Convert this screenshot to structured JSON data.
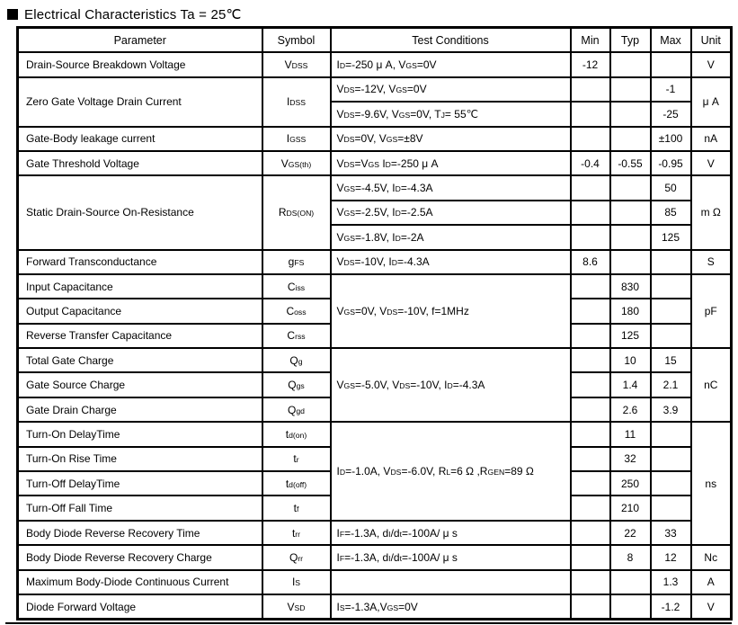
{
  "page": {
    "title": "Electrical Characteristics Ta = 25℃"
  },
  "colors": {
    "text": "#000000",
    "border": "#000000",
    "background": "#ffffff"
  },
  "table": {
    "headers": [
      "Parameter",
      "Symbol",
      "Test Conditions",
      "Min",
      "Typ",
      "Max",
      "Unit"
    ],
    "rows": [
      {
        "parameter": "Drain-Source Breakdown Voltage",
        "symbol": "V~DSS~",
        "condition": "I~D~=-250 μ A, V~GS~=0V",
        "min": "-12",
        "typ": "",
        "max": "",
        "unit": "V"
      },
      {
        "parameter": "Zero Gate Voltage Drain Current",
        "symbol": "I~DSS~",
        "condition": "V~DS~=-12V, V~GS~=0V",
        "min": "",
        "typ": "",
        "max": "-1",
        "unit": "μ A"
      },
      {
        "condition": "V~DS~=-9.6V, V~GS~=0V, T~J~= 55℃",
        "min": "",
        "typ": "",
        "max": "-25"
      },
      {
        "parameter": "Gate-Body leakage current",
        "symbol": "I~GSS~",
        "condition": "V~DS~=0V, V~GS~=±8V",
        "min": "",
        "typ": "",
        "max": "±100",
        "unit": "nA"
      },
      {
        "parameter": "Gate Threshold Voltage",
        "symbol": "V~GS(th)~",
        "condition": "V~DS~=V~GS~ I~D~=-250 μ A",
        "min": "-0.4",
        "typ": "-0.55",
        "max": "-0.95",
        "unit": "V"
      },
      {
        "parameter": "Static Drain-Source On-Resistance",
        "symbol": "R~DS(ON)~",
        "condition": "V~GS~=-4.5V, I~D~=-4.3A",
        "min": "",
        "typ": "",
        "max": "50",
        "unit": "m Ω"
      },
      {
        "condition": "V~GS~=-2.5V, I~D~=-2.5A",
        "min": "",
        "typ": "",
        "max": "85"
      },
      {
        "condition": "V~GS~=-1.8V, I~D~=-2A",
        "min": "",
        "typ": "",
        "max": "125"
      },
      {
        "parameter": "Forward Transconductance",
        "symbol": "g~FS~",
        "condition": "V~DS~=-10V, I~D~=-4.3A",
        "min": "8.6",
        "typ": "",
        "max": "",
        "unit": "S"
      },
      {
        "parameter": "Input Capacitance",
        "symbol": "C~iss~",
        "condition": "V~GS~=0V, V~DS~=-10V, f=1MHz",
        "min": "",
        "typ": "830",
        "max": "",
        "unit": "pF"
      },
      {
        "parameter": "Output Capacitance",
        "symbol": "C~oss~",
        "min": "",
        "typ": "180",
        "max": ""
      },
      {
        "parameter": "Reverse Transfer Capacitance",
        "symbol": "C~rss~",
        "min": "",
        "typ": "125",
        "max": ""
      },
      {
        "parameter": "Total Gate Charge",
        "symbol": "Q~g~",
        "condition": "V~GS~=-5.0V, V~DS~=-10V, I~D~=-4.3A",
        "min": "",
        "typ": "10",
        "max": "15",
        "unit": "nC"
      },
      {
        "parameter": "Gate Source Charge",
        "symbol": "Q~gs~",
        "min": "",
        "typ": "1.4",
        "max": "2.1"
      },
      {
        "parameter": "Gate Drain Charge",
        "symbol": "Q~gd~",
        "min": "",
        "typ": "2.6",
        "max": "3.9"
      },
      {
        "parameter": "Turn-On DelayTime",
        "symbol": "t~d(on)~",
        "condition": "I~D~=-1.0A, V~DS~=-6.0V, R~L~=6 Ω ,R~GEN~=89 Ω",
        "min": "",
        "typ": "11",
        "max": "",
        "unit": "ns"
      },
      {
        "parameter": "Turn-On Rise Time",
        "symbol": "t~r~",
        "min": "",
        "typ": "32",
        "max": ""
      },
      {
        "parameter": "Turn-Off DelayTime",
        "symbol": "t~d(off)~",
        "min": "",
        "typ": "250",
        "max": ""
      },
      {
        "parameter": "Turn-Off Fall Time",
        "symbol": "t~f~",
        "min": "",
        "typ": "210",
        "max": ""
      },
      {
        "parameter": "Body Diode Reverse Recovery Time",
        "symbol": "t~rr~",
        "condition": "I~F~=-1.3A, d~I~/d~t~=-100A/ μ s",
        "min": "",
        "typ": "22",
        "max": "33"
      },
      {
        "parameter": "Body Diode Reverse Recovery Charge",
        "symbol": "Q~rr~",
        "condition": "I~F~=-1.3A, d~I~/d~t~=-100A/ μ s",
        "min": "",
        "typ": "8",
        "max": "12",
        "unit": "Nc"
      },
      {
        "parameter": "Maximum Body-Diode Continuous Current",
        "symbol": "I~S~",
        "condition": "",
        "min": "",
        "typ": "",
        "max": "1.3",
        "unit": "A"
      },
      {
        "parameter": "Diode Forward Voltage",
        "symbol": "V~SD~",
        "condition": "I~S~=-1.3A,V~GS~=0V",
        "min": "",
        "typ": "",
        "max": "-1.2",
        "unit": "V"
      }
    ]
  }
}
